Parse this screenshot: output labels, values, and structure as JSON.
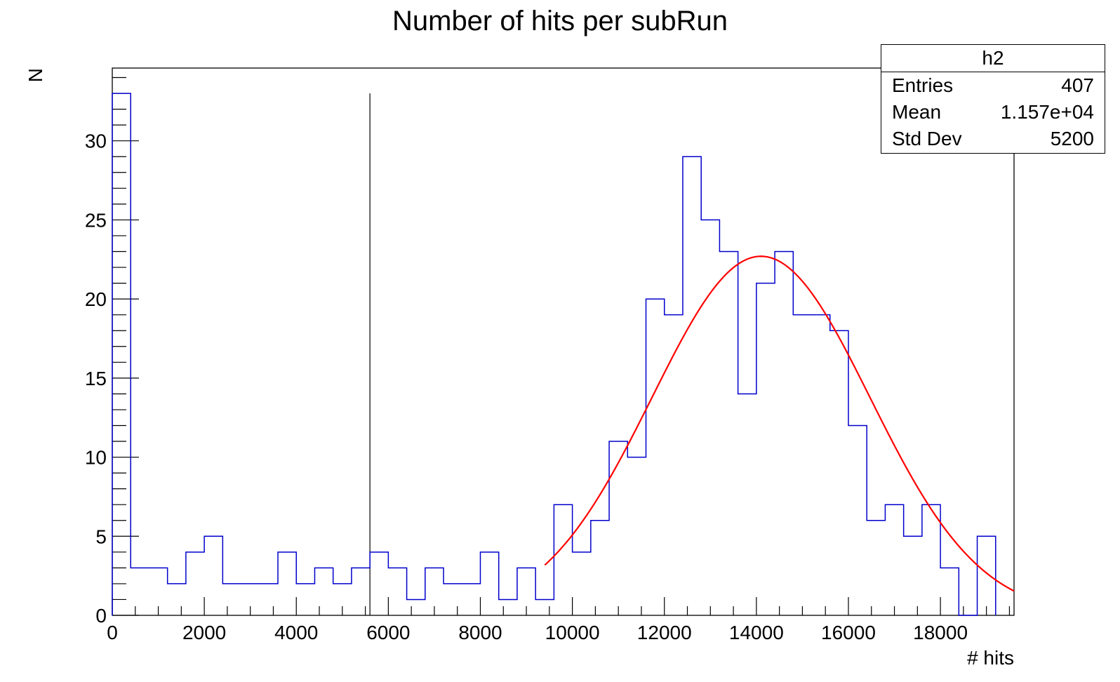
{
  "chart_data": {
    "type": "histogram",
    "title": "Number of hits per subRun",
    "xlabel": "# hits",
    "ylabel": "N",
    "xlim": [
      0,
      19600
    ],
    "ylim": [
      0,
      34.6
    ],
    "bin_width": 400,
    "x_ticks": [
      0,
      2000,
      4000,
      6000,
      8000,
      10000,
      12000,
      14000,
      16000,
      18000
    ],
    "y_ticks": [
      0,
      5,
      10,
      15,
      20,
      25,
      30
    ],
    "bin_edges_start": 0,
    "values": [
      33,
      3,
      3,
      2,
      4,
      5,
      2,
      2,
      2,
      4,
      2,
      3,
      2,
      3,
      4,
      3,
      1,
      3,
      2,
      2,
      4,
      1,
      3,
      1,
      7,
      4,
      6,
      11,
      10,
      20,
      19,
      29,
      25,
      23,
      14,
      21,
      23,
      19,
      19,
      18,
      12,
      6,
      7,
      5,
      7,
      3,
      0,
      5
    ],
    "vertical_line_x": 5600,
    "vertical_line_height": 33,
    "fit": {
      "function": "gaussian",
      "constant": 22.7,
      "mean": 14100,
      "sigma": 2370,
      "x_range": [
        9400,
        19600
      ],
      "color": "#ff0000"
    },
    "histogram_color": "#0000cc",
    "stats_box": {
      "name": "h2",
      "entries_label": "Entries",
      "entries": "407",
      "mean_label": "Mean",
      "mean": "1.157e+04",
      "stddev_label": "Std Dev",
      "stddev": "5200"
    }
  }
}
